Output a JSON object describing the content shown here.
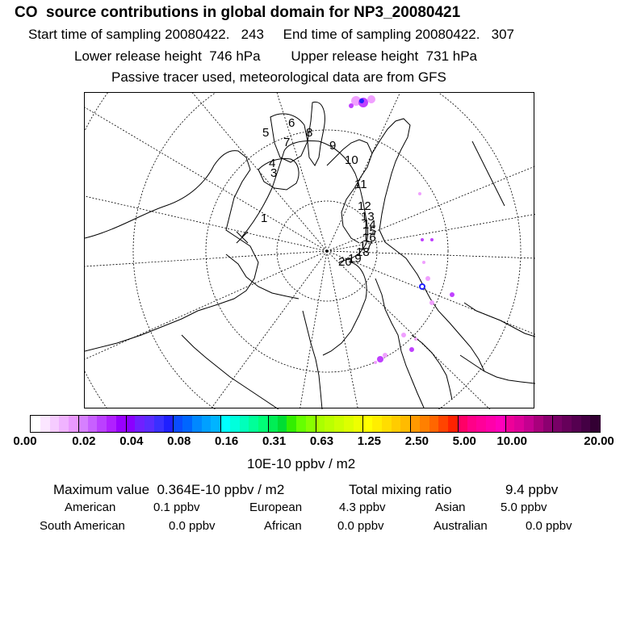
{
  "header": {
    "title": "CO  source contributions in global domain for NP3_20080421",
    "sampling": "Start time of sampling 20080422.   243     End time of sampling 20080422.   307",
    "release": "Lower release height  746 hPa        Upper release height  731 hPa",
    "tracer": "Passive tracer used, meteorological data are from GFS"
  },
  "map": {
    "trajectory_labels": [
      "1",
      "3",
      "4",
      "5",
      "6",
      "7",
      "8",
      "9",
      "10",
      "11",
      "12",
      "13",
      "14",
      "15",
      "16",
      "17",
      "18",
      "19",
      "20"
    ],
    "colors": {
      "coast": "#000000",
      "grid": "#000000",
      "plume_light": "#f0a0ff",
      "plume_mid": "#c040ff",
      "plume_core": "#2020ff"
    }
  },
  "colorbar": {
    "ticks": [
      "0.00",
      "0.02",
      "0.04",
      "0.08",
      "0.16",
      "0.31",
      "0.63",
      "1.25",
      "2.50",
      "5.00",
      "10.00",
      "20.00"
    ],
    "units": "10E-10 ppbv / m2",
    "colors": [
      "#ffffff",
      "#fbe6ff",
      "#f6ccff",
      "#f0b3ff",
      "#ea99ff",
      "#d680ff",
      "#c860ff",
      "#bb40ff",
      "#b020ff",
      "#9900ff",
      "#8a00ff",
      "#7020ff",
      "#5a2cff",
      "#3a30ff",
      "#1f20ff",
      "#0a4cff",
      "#0066ff",
      "#0088ff",
      "#00a0ff",
      "#00b4ff",
      "#00ffff",
      "#00ffdd",
      "#00ffbb",
      "#00ff99",
      "#00ff77",
      "#00ee55",
      "#00dd33",
      "#33ee00",
      "#66ff00",
      "#88ff00",
      "#aaff00",
      "#bbff00",
      "#ccff00",
      "#ddff00",
      "#eeff00",
      "#ffff00",
      "#ffee00",
      "#ffdd00",
      "#ffcc00",
      "#ffbb00",
      "#ff9900",
      "#ff8000",
      "#ff6600",
      "#ff4400",
      "#ff2200",
      "#ff0066",
      "#ff0088",
      "#ff0099",
      "#ff00aa",
      "#ff00bb",
      "#ee0099",
      "#dd0099",
      "#c40090",
      "#a8007c",
      "#8c0070",
      "#780066",
      "#66005a",
      "#550050",
      "#440044",
      "#330033"
    ]
  },
  "stats": {
    "maximum_label": "Maximum value  0.364E-10 ppbv / m2",
    "total_label": "Total mixing ratio",
    "total_value": "9.4 ppbv",
    "regions": [
      {
        "name": "American",
        "value": "0.1 ppbv"
      },
      {
        "name": "European",
        "value": "4.3 ppbv"
      },
      {
        "name": "Asian",
        "value": "5.0 ppbv"
      },
      {
        "name": "South American",
        "value": "0.0 ppbv"
      },
      {
        "name": "African",
        "value": "0.0 ppbv"
      },
      {
        "name": "Australian",
        "value": "0.0 ppbv"
      }
    ]
  }
}
